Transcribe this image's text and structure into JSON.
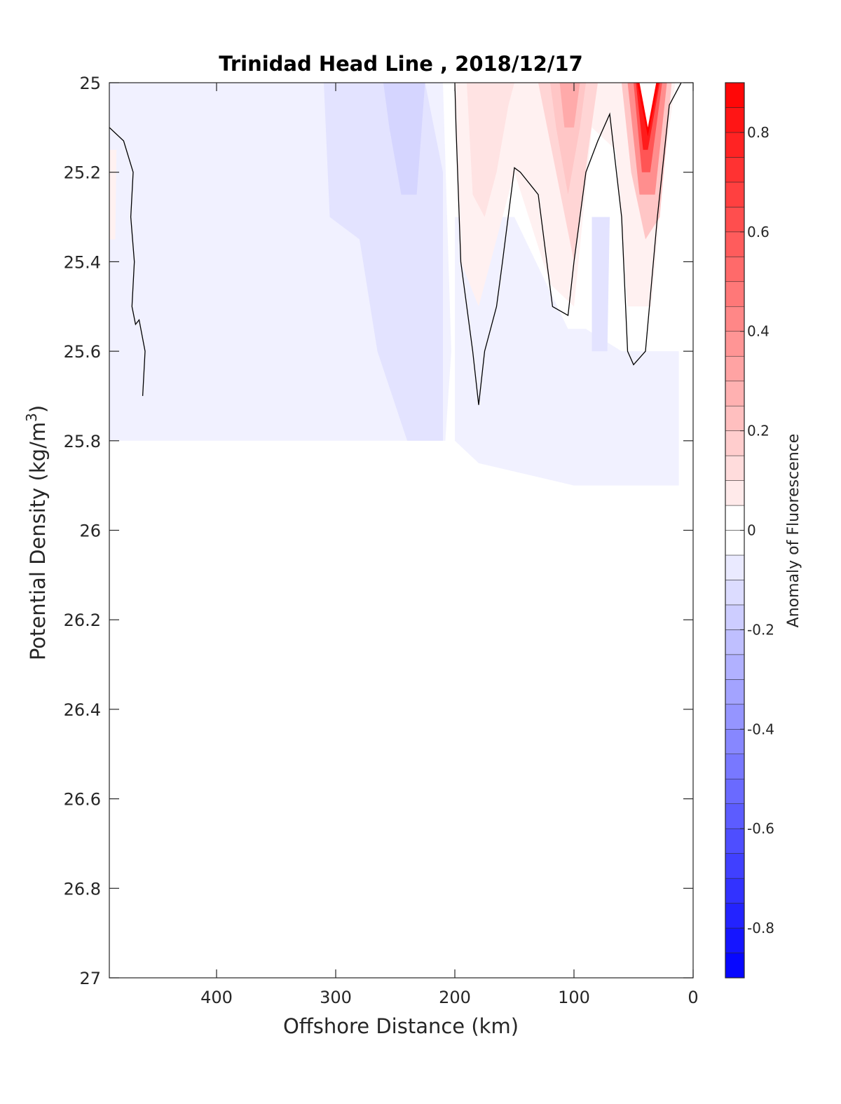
{
  "chart_data": {
    "type": "heatmap",
    "title": "Trinidad Head Line , 2018/12/17",
    "xlabel": "Offshore Distance (km)",
    "ylabel": "Potential Density (kg/m",
    "ylabel_sup": "3",
    "ylabel_close": ")",
    "xlim": [
      490,
      0
    ],
    "ylim": [
      25,
      27
    ],
    "x_ticks": [
      400,
      300,
      200,
      100,
      0
    ],
    "y_ticks": [
      25,
      25.2,
      25.4,
      25.6,
      25.8,
      26,
      26.2,
      26.4,
      26.6,
      26.8,
      27
    ],
    "x_tick_labels": [
      "400",
      "300",
      "200",
      "100",
      "0"
    ],
    "y_tick_labels": [
      "25",
      "25.2",
      "25.4",
      "25.6",
      "25.8",
      "26",
      "26.2",
      "26.4",
      "26.6",
      "26.8",
      "27"
    ],
    "colorbar": {
      "label": "Anomaly of Fluorescence",
      "range": [
        -0.9,
        0.9
      ],
      "levels": 36,
      "ticks": [
        0.8,
        0.6,
        0.4,
        0.2,
        0,
        -0.2,
        -0.4,
        -0.6,
        -0.8
      ],
      "tick_labels": [
        "0.8",
        "0.6",
        "0.4",
        "0.2",
        "0",
        "-0.2",
        "-0.4",
        "-0.6",
        "-0.8"
      ],
      "colors": {
        "positive": "#ff0000",
        "zero": "#ffffff",
        "negative": "#0000ff"
      }
    },
    "regions": [
      {
        "value": -0.05,
        "points": [
          [
            490,
            25
          ],
          [
            210,
            25
          ],
          [
            203,
            25.6
          ],
          [
            208,
            25.8
          ],
          [
            490,
            25.8
          ]
        ]
      },
      {
        "value": -0.05,
        "points": [
          [
            200,
            25.3
          ],
          [
            150,
            25.3
          ],
          [
            105,
            25.55
          ],
          [
            90,
            25.55
          ],
          [
            60,
            25.6
          ],
          [
            12,
            25.6
          ],
          [
            12,
            25.9
          ],
          [
            100,
            25.9
          ],
          [
            180,
            25.85
          ],
          [
            200,
            25.8
          ]
        ]
      },
      {
        "value": -0.1,
        "points": [
          [
            310,
            25
          ],
          [
            225,
            25
          ],
          [
            210,
            25.2
          ],
          [
            210,
            25.8
          ],
          [
            222,
            25.8
          ],
          [
            240,
            25.8
          ],
          [
            265,
            25.6
          ],
          [
            280,
            25.35
          ],
          [
            305,
            25.3
          ]
        ]
      },
      {
        "value": -0.15,
        "points": [
          [
            260,
            25
          ],
          [
            225,
            25
          ],
          [
            232,
            25.25
          ],
          [
            245,
            25.25
          ],
          [
            255,
            25.1
          ]
        ]
      },
      {
        "value": -0.1,
        "points": [
          [
            85,
            25.3
          ],
          [
            70,
            25.3
          ],
          [
            72,
            25.6
          ],
          [
            85,
            25.6
          ]
        ]
      },
      {
        "value": 0.05,
        "points": [
          [
            200,
            25
          ],
          [
            15,
            25
          ],
          [
            25,
            25.2
          ],
          [
            35,
            25.5
          ],
          [
            55,
            25.5
          ],
          [
            65,
            25.15
          ],
          [
            85,
            25.1
          ],
          [
            100,
            25.5
          ],
          [
            120,
            25.45
          ],
          [
            150,
            25.2
          ],
          [
            180,
            25.5
          ],
          [
            195,
            25.4
          ]
        ]
      },
      {
        "value": 0.1,
        "points": [
          [
            190,
            25
          ],
          [
            150,
            25
          ],
          [
            155,
            25.05
          ],
          [
            165,
            25.2
          ],
          [
            175,
            25.3
          ],
          [
            185,
            25.25
          ]
        ]
      },
      {
        "value": 0.15,
        "points": [
          [
            130,
            25
          ],
          [
            80,
            25
          ],
          [
            88,
            25.15
          ],
          [
            100,
            25.4
          ],
          [
            115,
            25.2
          ]
        ]
      },
      {
        "value": 0.2,
        "points": [
          [
            120,
            25
          ],
          [
            90,
            25
          ],
          [
            95,
            25.1
          ],
          [
            105,
            25.25
          ],
          [
            115,
            25.1
          ]
        ]
      },
      {
        "value": 0.3,
        "points": [
          [
            112,
            25
          ],
          [
            95,
            25
          ],
          [
            100,
            25.1
          ],
          [
            108,
            25.1
          ]
        ]
      },
      {
        "value": 0.2,
        "points": [
          [
            60,
            25
          ],
          [
            18,
            25
          ],
          [
            28,
            25.3
          ],
          [
            40,
            25.35
          ],
          [
            52,
            25.2
          ]
        ]
      },
      {
        "value": 0.4,
        "points": [
          [
            55,
            25
          ],
          [
            22,
            25
          ],
          [
            32,
            25.25
          ],
          [
            45,
            25.25
          ]
        ]
      },
      {
        "value": 0.6,
        "points": [
          [
            50,
            25
          ],
          [
            26,
            25
          ],
          [
            36,
            25.2
          ],
          [
            43,
            25.2
          ]
        ]
      },
      {
        "value": 0.8,
        "points": [
          [
            48,
            25
          ],
          [
            28,
            25
          ],
          [
            38,
            25.15
          ],
          [
            42,
            25.15
          ]
        ]
      },
      {
        "value": 0.9,
        "points": [
          [
            47,
            25
          ],
          [
            29,
            25
          ],
          [
            38,
            25.12
          ]
        ]
      },
      {
        "value": 0,
        "points": [
          [
            45,
            25
          ],
          [
            31,
            25
          ],
          [
            38,
            25.1
          ]
        ]
      },
      {
        "value": 0.05,
        "points": [
          [
            490,
            25.15
          ],
          [
            484,
            25.15
          ],
          [
            485,
            25.35
          ],
          [
            490,
            25.35
          ]
        ]
      }
    ],
    "zero_contours": [
      [
        [
          490,
          25.1
        ],
        [
          478,
          25.13
        ],
        [
          470,
          25.2
        ],
        [
          472,
          25.3
        ],
        [
          469,
          25.4
        ],
        [
          471,
          25.5
        ],
        [
          468,
          25.54
        ],
        [
          465,
          25.53
        ],
        [
          460,
          25.6
        ],
        [
          462,
          25.7
        ]
      ],
      [
        [
          200,
          25
        ],
        [
          199,
          25.1
        ],
        [
          195,
          25.4
        ],
        [
          185,
          25.6
        ],
        [
          180,
          25.72
        ],
        [
          175,
          25.6
        ],
        [
          165,
          25.5
        ],
        [
          160,
          25.4
        ],
        [
          150,
          25.19
        ],
        [
          145,
          25.2
        ],
        [
          130,
          25.25
        ],
        [
          118,
          25.5
        ],
        [
          105,
          25.52
        ],
        [
          100,
          25.4
        ],
        [
          90,
          25.2
        ],
        [
          80,
          25.13
        ],
        [
          70,
          25.07
        ],
        [
          60,
          25.3
        ],
        [
          55,
          25.6
        ],
        [
          50,
          25.63
        ],
        [
          40,
          25.6
        ],
        [
          30,
          25.3
        ],
        [
          20,
          25.05
        ],
        [
          10,
          25
        ]
      ]
    ]
  }
}
